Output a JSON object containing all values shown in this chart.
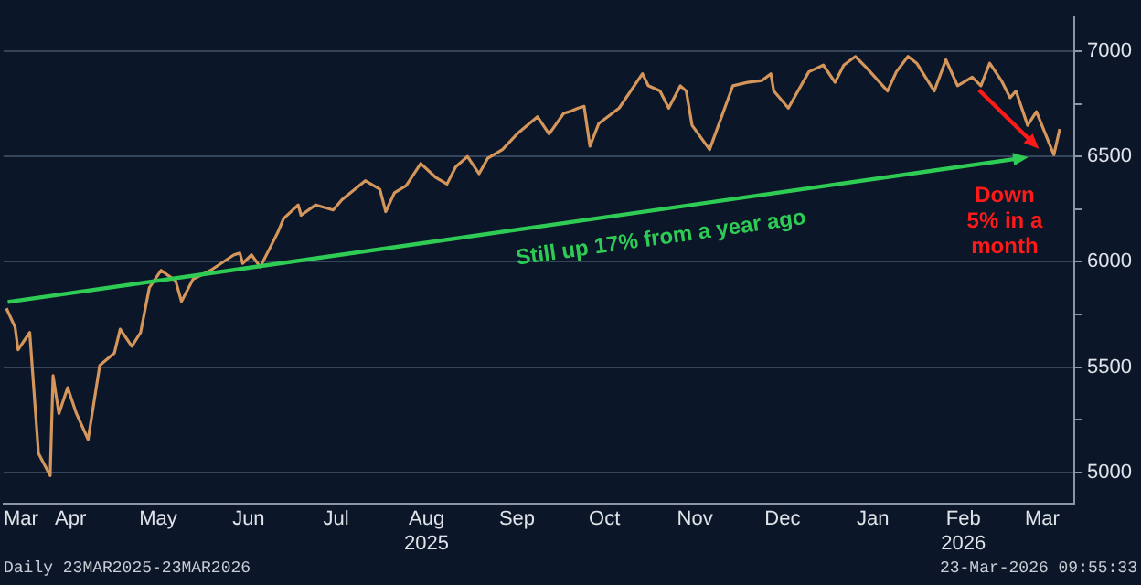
{
  "chart_data": {
    "type": "line",
    "x": [
      "2025-03-24",
      "2025-03-27",
      "2025-03-28",
      "2025-04-01",
      "2025-04-04",
      "2025-04-08",
      "2025-04-09",
      "2025-04-11",
      "2025-04-14",
      "2025-04-17",
      "2025-04-21",
      "2025-04-25",
      "2025-04-30",
      "2025-05-02",
      "2025-05-06",
      "2025-05-09",
      "2025-05-12",
      "2025-05-16",
      "2025-05-21",
      "2025-05-23",
      "2025-05-27",
      "2025-06-02",
      "2025-06-10",
      "2025-06-12",
      "2025-06-13",
      "2025-06-16",
      "2025-06-19",
      "2025-06-25",
      "2025-06-27",
      "2025-07-02",
      "2025-07-03",
      "2025-07-08",
      "2025-07-14",
      "2025-07-17",
      "2025-07-25",
      "2025-07-30",
      "2025-08-01",
      "2025-08-04",
      "2025-08-08",
      "2025-08-13",
      "2025-08-18",
      "2025-08-22",
      "2025-08-25",
      "2025-08-29",
      "2025-09-02",
      "2025-09-05",
      "2025-09-10",
      "2025-09-15",
      "2025-09-22",
      "2025-09-26",
      "2025-10-01",
      "2025-10-03",
      "2025-10-06",
      "2025-10-08",
      "2025-10-10",
      "2025-10-13",
      "2025-10-20",
      "2025-10-28",
      "2025-10-30",
      "2025-11-03",
      "2025-11-06",
      "2025-11-10",
      "2025-11-12",
      "2025-11-14",
      "2025-11-20",
      "2025-11-28",
      "2025-12-03",
      "2025-12-08",
      "2025-12-11",
      "2025-12-12",
      "2025-12-17",
      "2025-12-24",
      "2025-12-29",
      "2026-01-02",
      "2026-01-05",
      "2026-01-09",
      "2026-01-13",
      "2026-01-20",
      "2026-01-23",
      "2026-01-27",
      "2026-01-30",
      "2026-02-05",
      "2026-02-09",
      "2026-02-13",
      "2026-02-18",
      "2026-02-21",
      "2026-02-24",
      "2026-02-28",
      "2026-03-03",
      "2026-03-05",
      "2026-03-09",
      "2026-03-12",
      "2026-03-18",
      "2026-03-20"
    ],
    "series": [
      {
        "color": "#d4965a",
        "values": [
          5779,
          5688,
          5582,
          5664,
          5090,
          4984,
          5459,
          5279,
          5402,
          5279,
          5156,
          5508,
          5566,
          5680,
          5598,
          5664,
          5877,
          5959,
          5910,
          5811,
          5918,
          5959,
          6033,
          6041,
          5992,
          6033,
          5975,
          6139,
          6205,
          6270,
          6221,
          6270,
          6246,
          6295,
          6385,
          6344,
          6238,
          6328,
          6361,
          6467,
          6402,
          6369,
          6451,
          6500,
          6418,
          6492,
          6533,
          6607,
          6689,
          6607,
          6705,
          6713,
          6730,
          6738,
          6549,
          6656,
          6730,
          6893,
          6836,
          6811,
          6730,
          6836,
          6811,
          6648,
          6533,
          6836,
          6852,
          6861,
          6893,
          6811,
          6730,
          6902,
          6934,
          6852,
          6934,
          6975,
          6918,
          6811,
          6902,
          6975,
          6943,
          6811,
          6959,
          6836,
          6877,
          6836,
          6943,
          6861,
          6779,
          6811,
          6648,
          6713,
          6508,
          6631
        ]
      }
    ],
    "xlim": [
      "2025-03-23",
      "2026-03-25"
    ],
    "xticks": [
      {
        "value": "2025-03-29",
        "label": "Mar"
      },
      {
        "value": "2025-04-15",
        "label": "Apr"
      },
      {
        "value": "2025-05-15",
        "label": "May"
      },
      {
        "value": "2025-06-15",
        "label": "Jun"
      },
      {
        "value": "2025-07-15",
        "label": "Jul"
      },
      {
        "value": "2025-08-15",
        "label": "Aug\n2025"
      },
      {
        "value": "2025-09-15",
        "label": "Sep"
      },
      {
        "value": "2025-10-15",
        "label": "Oct"
      },
      {
        "value": "2025-11-15",
        "label": "Nov"
      },
      {
        "value": "2025-12-15",
        "label": "Dec"
      },
      {
        "value": "2026-01-15",
        "label": "Jan"
      },
      {
        "value": "2026-02-15",
        "label": "Feb\n2026"
      },
      {
        "value": "2026-03-14",
        "label": "Mar"
      }
    ],
    "ylim": [
      4850,
      7160
    ],
    "yticks": [
      5000,
      {
        "value": 5250,
        "label": null
      },
      5500,
      {
        "value": 5750,
        "label": null
      },
      6000,
      {
        "value": 6250,
        "label": null
      },
      6500,
      {
        "value": 6750,
        "label": null
      },
      7000
    ],
    "grid": "y",
    "legend": false,
    "marker": "none",
    "line_style": "solid",
    "annotations": [
      "Still up 17% from a year ago",
      "Down 5% in a month",
      "Daily 23MAR2025-23MAR2026",
      "23-Mar-2026 09:55:33"
    ]
  }
}
